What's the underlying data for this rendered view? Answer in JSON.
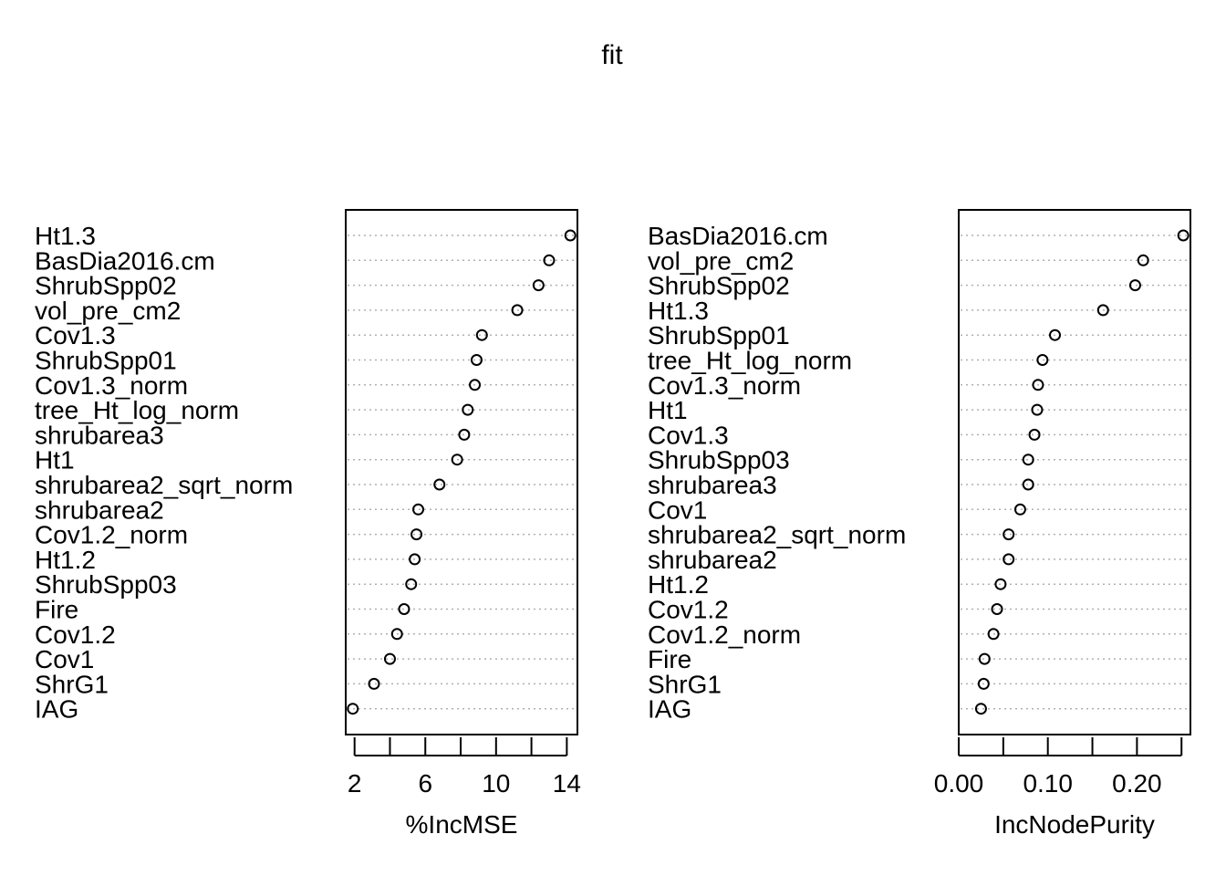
{
  "title": "fit",
  "chart_data": [
    {
      "type": "scatter",
      "xlabel": "%IncMSE",
      "xlim": [
        1.5,
        14.6
      ],
      "xticks": [
        2,
        4,
        6,
        8,
        10,
        12,
        14
      ],
      "xtick_labels": [
        "2",
        "6",
        "10",
        "14"
      ],
      "xtick_label_values": [
        2,
        6,
        10,
        14
      ],
      "grid": "dotted horizontal",
      "categories": [
        "Ht1.3",
        "BasDia2016.cm",
        "ShrubSpp02",
        "vol_pre_cm2",
        "Cov1.3",
        "ShrubSpp01",
        "Cov1.3_norm",
        "tree_Ht_log_norm",
        "shrubarea3",
        "Ht1",
        "shrubarea2_sqrt_norm",
        "shrubarea2",
        "Cov1.2_norm",
        "Ht1.2",
        "ShrubSpp03",
        "Fire",
        "Cov1.2",
        "Cov1",
        "ShrG1",
        "IAG"
      ],
      "values": [
        14.2,
        13.0,
        12.4,
        11.2,
        9.2,
        8.9,
        8.8,
        8.4,
        8.2,
        7.8,
        6.8,
        5.6,
        5.5,
        5.4,
        5.2,
        4.8,
        4.4,
        4.0,
        3.1,
        1.9
      ]
    },
    {
      "type": "scatter",
      "xlabel": "IncNodePurity",
      "xlim": [
        0.0,
        0.26
      ],
      "xticks": [
        0.0,
        0.05,
        0.1,
        0.15,
        0.2,
        0.25
      ],
      "xtick_labels": [
        "0.00",
        "0.10",
        "0.20"
      ],
      "xtick_label_values": [
        0.0,
        0.1,
        0.2
      ],
      "grid": "dotted horizontal",
      "categories": [
        "BasDia2016.cm",
        "vol_pre_cm2",
        "ShrubSpp02",
        "Ht1.3",
        "ShrubSpp01",
        "tree_Ht_log_norm",
        "Cov1.3_norm",
        "Ht1",
        "Cov1.3",
        "ShrubSpp03",
        "shrubarea3",
        "Cov1",
        "shrubarea2_sqrt_norm",
        "shrubarea2",
        "Ht1.2",
        "Cov1.2",
        "Cov1.2_norm",
        "Fire",
        "ShrG1",
        "IAG"
      ],
      "values": [
        0.252,
        0.207,
        0.198,
        0.162,
        0.108,
        0.094,
        0.089,
        0.088,
        0.085,
        0.078,
        0.078,
        0.069,
        0.056,
        0.056,
        0.047,
        0.043,
        0.039,
        0.029,
        0.028,
        0.025
      ]
    }
  ]
}
